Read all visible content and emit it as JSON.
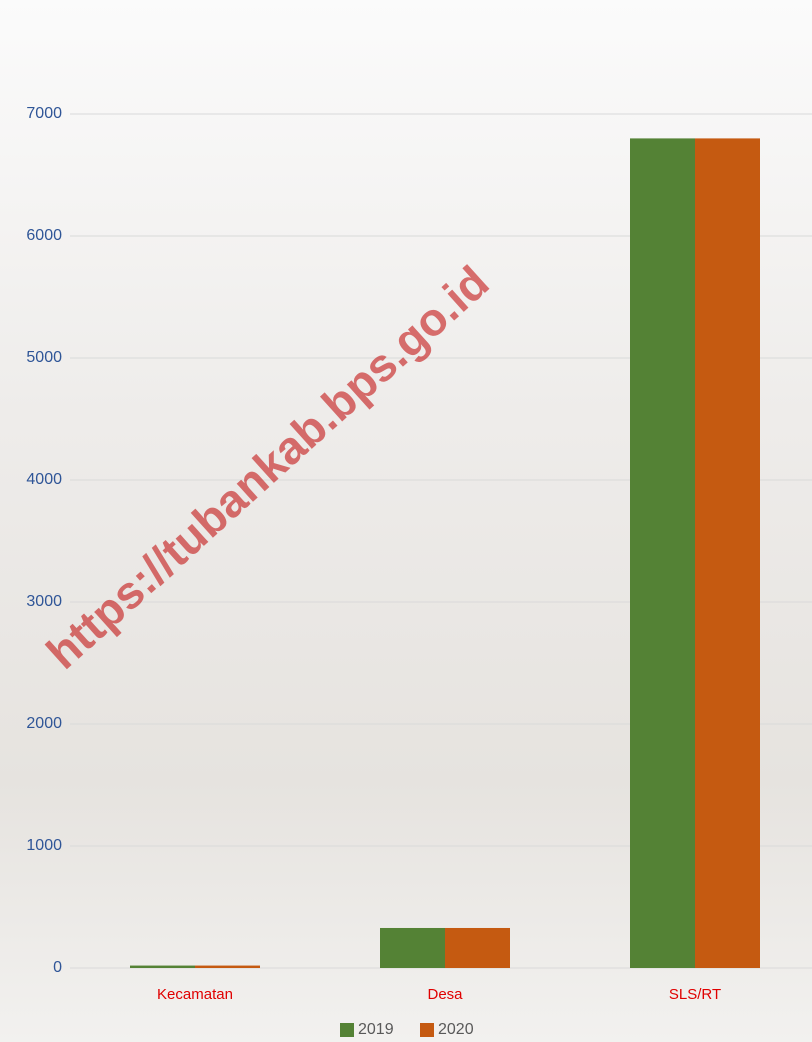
{
  "chart_data": {
    "type": "bar",
    "categories": [
      "Kecamatan",
      "Desa",
      "SLS/RT"
    ],
    "series": [
      {
        "name": "2019",
        "color": "#548235",
        "values": [
          20,
          328,
          6800
        ]
      },
      {
        "name": "2020",
        "color": "#c55a11",
        "values": [
          20,
          328,
          6800
        ]
      }
    ],
    "ylim": [
      0,
      7000
    ],
    "yticks": [
      0,
      1000,
      2000,
      3000,
      4000,
      5000,
      6000,
      7000
    ],
    "grid": true,
    "legend": "bottom",
    "watermark": "https://tubankab.bps.go.id"
  }
}
